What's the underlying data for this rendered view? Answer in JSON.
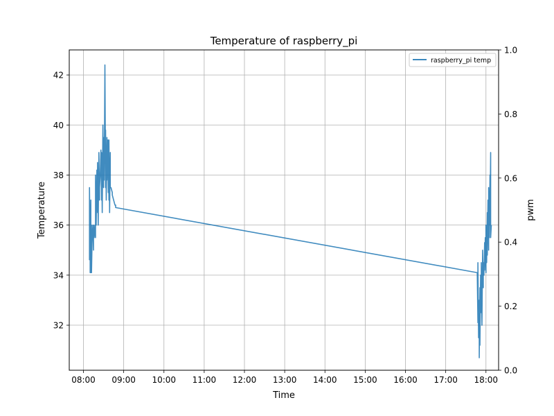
{
  "chart_data": {
    "type": "line",
    "title": "Temperature of raspberry_pi",
    "xlabel": "Time",
    "ylabel": "Temperature",
    "y2label": "pwm",
    "xlim": [
      "08:00",
      "18:40"
    ],
    "ylim": [
      30.2,
      43.0
    ],
    "y2lim": [
      0.0,
      1.0
    ],
    "x_ticks": [
      "08:00",
      "09:00",
      "10:00",
      "11:00",
      "12:00",
      "13:00",
      "14:00",
      "15:00",
      "16:00",
      "17:00",
      "18:00"
    ],
    "y_ticks": [
      32,
      34,
      36,
      38,
      40,
      42
    ],
    "y2_ticks": [
      0.0,
      0.2,
      0.4,
      0.6,
      0.8,
      1.0
    ],
    "grid": true,
    "legend_position": "top-right",
    "series": [
      {
        "name": "raspberry_pi temp",
        "color": "#1f77b4",
        "x": [
          "08:09",
          "08:09",
          "08:10",
          "08:10",
          "08:11",
          "08:11",
          "08:12",
          "08:12",
          "08:13",
          "08:14",
          "08:15",
          "08:15",
          "08:16",
          "08:17",
          "08:18",
          "08:18",
          "08:19",
          "08:20",
          "08:21",
          "08:21",
          "08:22",
          "08:23",
          "08:24",
          "08:24",
          "08:25",
          "08:26",
          "08:27",
          "08:27",
          "08:28",
          "08:29",
          "08:30",
          "08:30",
          "08:31",
          "08:32",
          "08:33",
          "08:33",
          "08:34",
          "08:35",
          "08:35",
          "08:36",
          "08:37",
          "08:37",
          "08:38",
          "08:38",
          "08:39",
          "08:40",
          "08:40",
          "08:41",
          "08:42",
          "08:43",
          "08:43",
          "08:44",
          "08:45",
          "08:45",
          "08:46",
          "08:47",
          "08:48",
          "08:48",
          "17:47",
          "17:48",
          "17:48",
          "17:49",
          "17:50",
          "17:50",
          "17:51",
          "17:51",
          "17:52",
          "17:53",
          "17:53",
          "17:54",
          "17:55",
          "17:56",
          "17:56",
          "17:57",
          "17:58",
          "17:58",
          "17:59",
          "18:00",
          "18:00",
          "18:01",
          "18:02",
          "18:02",
          "18:03",
          "18:04",
          "18:04",
          "18:05",
          "18:06",
          "18:06",
          "18:07",
          "18:07",
          "18:08"
        ],
        "y": [
          34.6,
          37.5,
          35.0,
          34.1,
          37.0,
          34.1,
          36.0,
          34.1,
          35.5,
          36.0,
          35.0,
          36.0,
          35.5,
          36.0,
          35.5,
          38.0,
          36.0,
          38.2,
          36.5,
          38.5,
          36.0,
          38.9,
          37.0,
          37.5,
          38.0,
          39.0,
          37.0,
          38.9,
          36.5,
          40.0,
          37.5,
          39.5,
          37.8,
          42.4,
          37.5,
          39.8,
          37.0,
          39.5,
          37.8,
          39.4,
          37.3,
          39.4,
          37.0,
          39.4,
          36.5,
          38.9,
          37.5,
          37.5,
          37.4,
          37.3,
          37.2,
          37.1,
          37.0,
          37.0,
          36.9,
          36.8,
          36.8,
          36.7,
          34.1,
          32.1,
          34.5,
          31.5,
          33.0,
          30.7,
          33.5,
          31.2,
          34.0,
          32.5,
          34.5,
          32.0,
          35.0,
          33.5,
          34.5,
          34.0,
          35.3,
          34.2,
          35.5,
          34.1,
          36.0,
          34.5,
          36.5,
          34.8,
          37.0,
          35.0,
          37.5,
          35.5,
          38.0,
          36.0,
          38.9,
          35.5,
          36.0
        ]
      }
    ]
  }
}
